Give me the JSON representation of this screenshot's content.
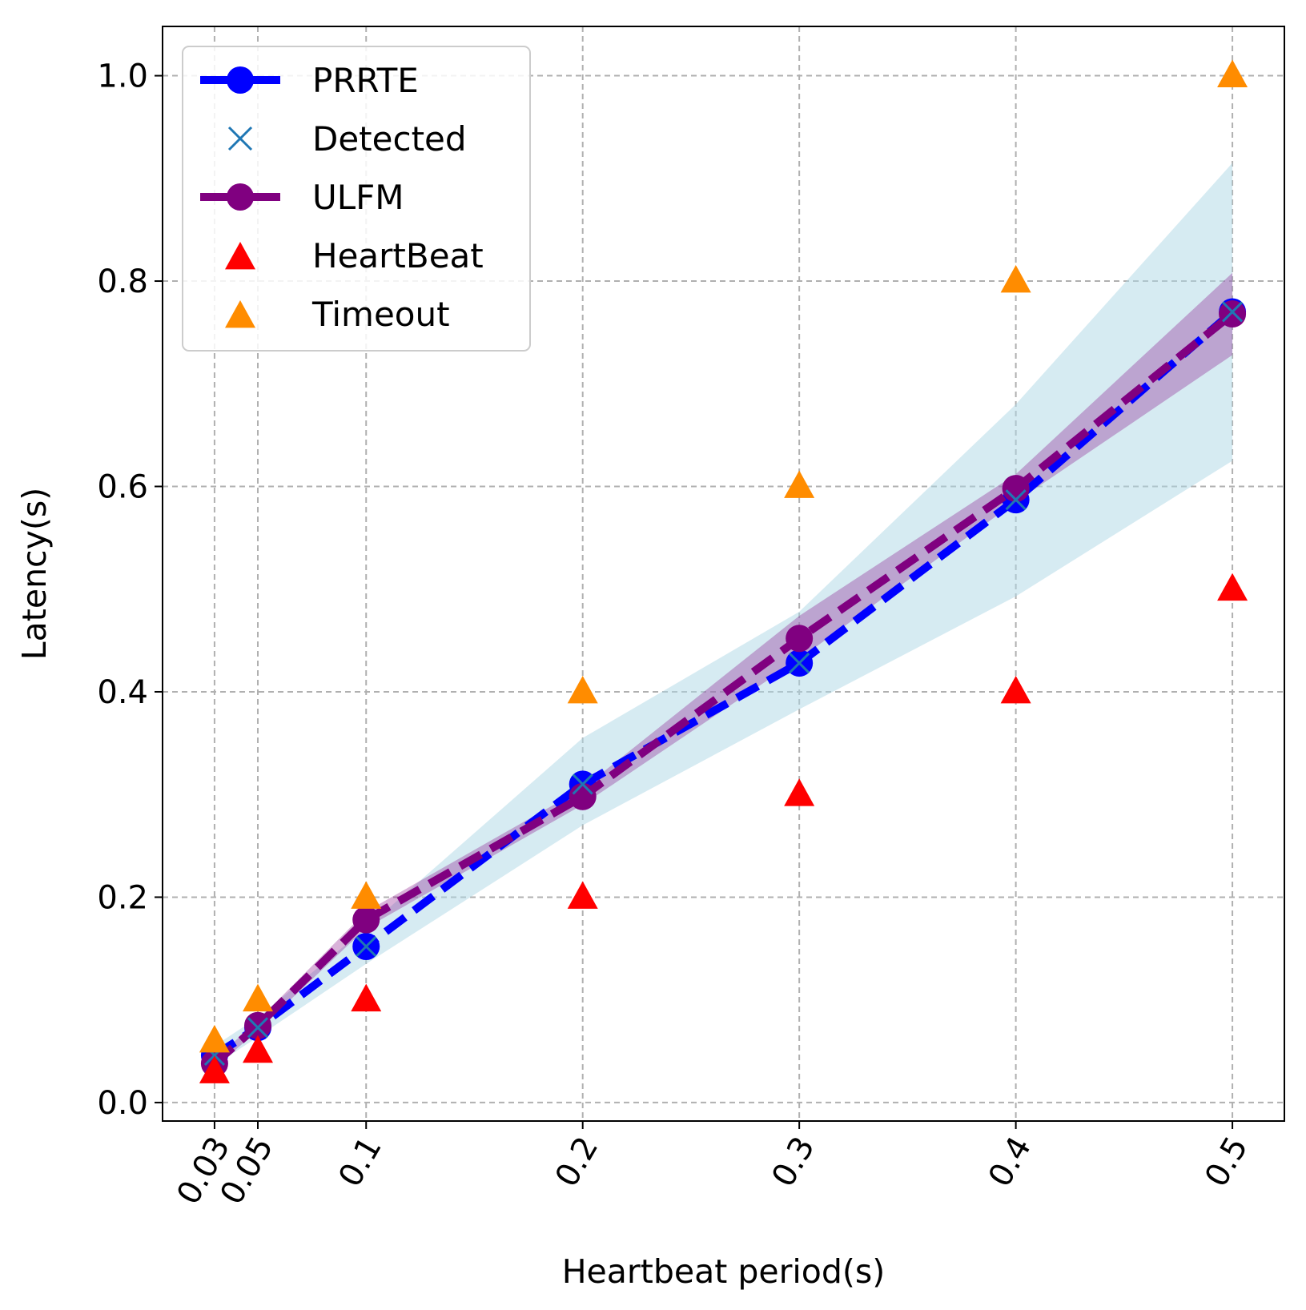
{
  "chart_data": {
    "type": "line",
    "xlabel": "Heartbeat period(s)",
    "ylabel": "Latency(s)",
    "x": [
      0.03,
      0.05,
      0.1,
      0.2,
      0.3,
      0.4,
      0.5
    ],
    "x_tick_labels": [
      "0.03",
      "0.05",
      "0.1",
      "0.2",
      "0.3",
      "0.4",
      "0.5"
    ],
    "y_ticks": [
      0.0,
      0.2,
      0.4,
      0.6,
      0.8,
      1.0
    ],
    "y_tick_labels": [
      "0.0",
      "0.2",
      "0.4",
      "0.6",
      "0.8",
      "1.0"
    ],
    "xlim": [
      0.006,
      0.524
    ],
    "ylim": [
      -0.018,
      1.048
    ],
    "grid": true,
    "legend_position": "top-left",
    "series": [
      {
        "name": "PRRTE",
        "style": "line-marker",
        "color": "#0000ff",
        "values": [
          0.046,
          0.073,
          0.152,
          0.31,
          0.428,
          0.587,
          0.77
        ],
        "band_lower": [
          0.036,
          0.064,
          0.135,
          0.27,
          0.383,
          0.493,
          0.625
        ],
        "band_upper": [
          0.055,
          0.083,
          0.17,
          0.355,
          0.478,
          0.68,
          0.915
        ],
        "band_color": "#add8e6"
      },
      {
        "name": "Detected",
        "style": "x-marker",
        "color": "#1f77b4",
        "values": [
          0.046,
          0.073,
          0.152,
          0.31,
          0.428,
          0.587,
          0.77
        ]
      },
      {
        "name": "ULFM",
        "style": "line-marker",
        "color": "#800080",
        "values": [
          0.038,
          0.075,
          0.178,
          0.298,
          0.452,
          0.598,
          0.768
        ],
        "band_lower": [
          0.034,
          0.07,
          0.17,
          0.29,
          0.432,
          0.585,
          0.728
        ],
        "band_upper": [
          0.042,
          0.08,
          0.186,
          0.306,
          0.474,
          0.612,
          0.808
        ],
        "band_color": "#800080"
      },
      {
        "name": "HeartBeat",
        "style": "triangle",
        "color": "#ff0000",
        "values": [
          0.03,
          0.05,
          0.1,
          0.2,
          0.3,
          0.4,
          0.5
        ]
      },
      {
        "name": "Timeout",
        "style": "triangle",
        "color": "#ff8c00",
        "values": [
          0.06,
          0.1,
          0.2,
          0.4,
          0.6,
          0.8,
          1.0
        ]
      }
    ]
  }
}
